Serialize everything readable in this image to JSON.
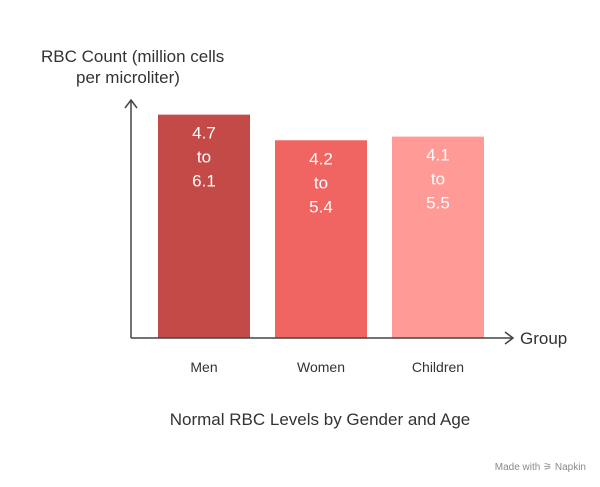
{
  "chart_data": {
    "type": "bar",
    "ylabel_lines": [
      "RBC Count (million cells",
      "per microliter)"
    ],
    "xlabel": "Group",
    "title": "Normal RBC Levels by Gender and Age",
    "categories": [
      "Men",
      "Women",
      "Children"
    ],
    "ranges": [
      {
        "low": 4.7,
        "high": 6.1,
        "label_lines": [
          "4.7",
          "to",
          "6.1"
        ],
        "color": "#c44a47"
      },
      {
        "low": 4.2,
        "high": 5.4,
        "label_lines": [
          "4.2",
          "to",
          "5.4"
        ],
        "color": "#f06461"
      },
      {
        "low": 4.1,
        "high": 5.5,
        "label_lines": [
          "4.1",
          "to",
          "5.5"
        ],
        "color": "#ff9a97"
      }
    ],
    "ylim": [
      0,
      6.5
    ]
  },
  "footer": "Made with ⚞ Napkin"
}
